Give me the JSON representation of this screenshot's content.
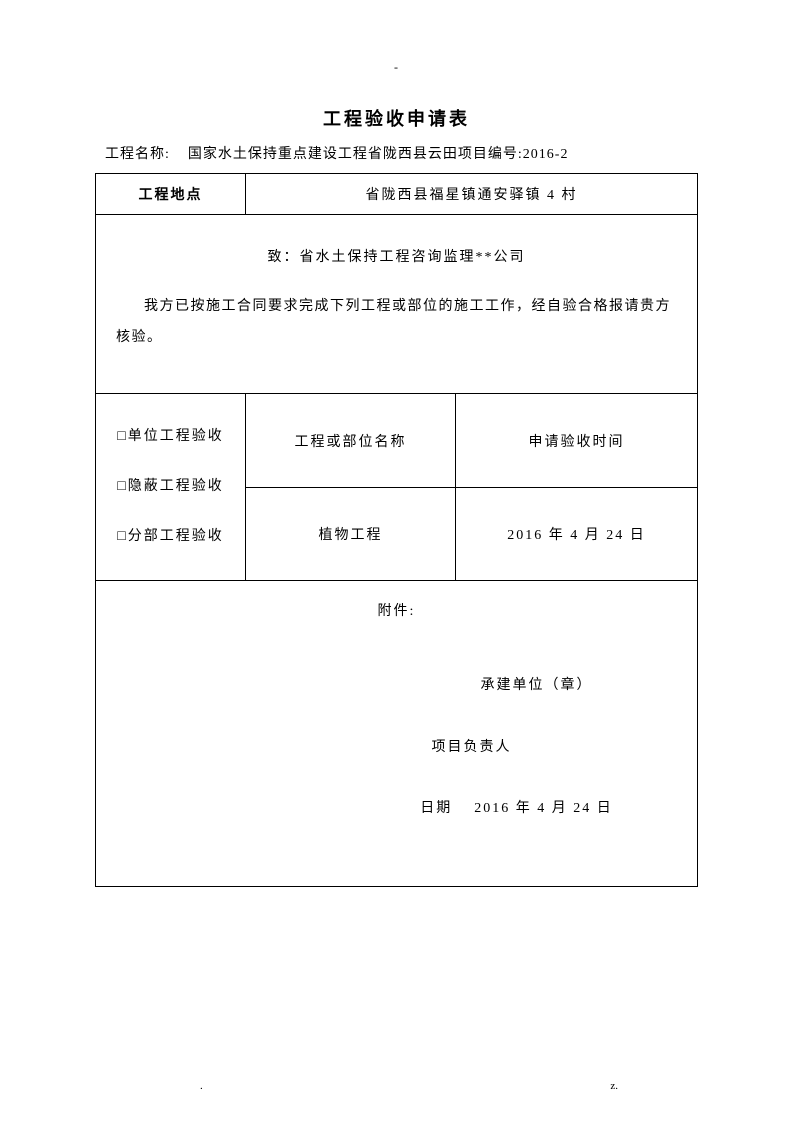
{
  "header": {
    "top_mark": "-",
    "title": "工程验收申请表",
    "project_label": "工程名称:",
    "project_name": "国家水土保持重点建设工程省陇西县云田项目编号:2016-2"
  },
  "row1": {
    "label": "工程地点",
    "value": "省陇西县福星镇通安驿镇 4 村"
  },
  "message": {
    "line1": "致：省水土保持工程咨询监理**公司",
    "line2": "我方已按施工合同要求完成下列工程或部位的施工工作，经自验合格报请贵方核验。"
  },
  "section": {
    "col1_opt1": "□单位工程验收",
    "col1_opt2": "□隐蔽工程验收",
    "col1_opt3": "□分部工程验收",
    "col2_header": "工程或部位名称",
    "col3_header": "申请验收时间",
    "col2_value": "植物工程",
    "col3_value": "2016 年 4 月 24 日"
  },
  "attachment": {
    "title": "附件:",
    "contractor": "承建单位（章）",
    "pm_label": "项目负责人",
    "date_label": "日期",
    "date_value": "2016 年 4 月 24 日"
  },
  "footer": {
    "left": ".",
    "right": "z."
  }
}
